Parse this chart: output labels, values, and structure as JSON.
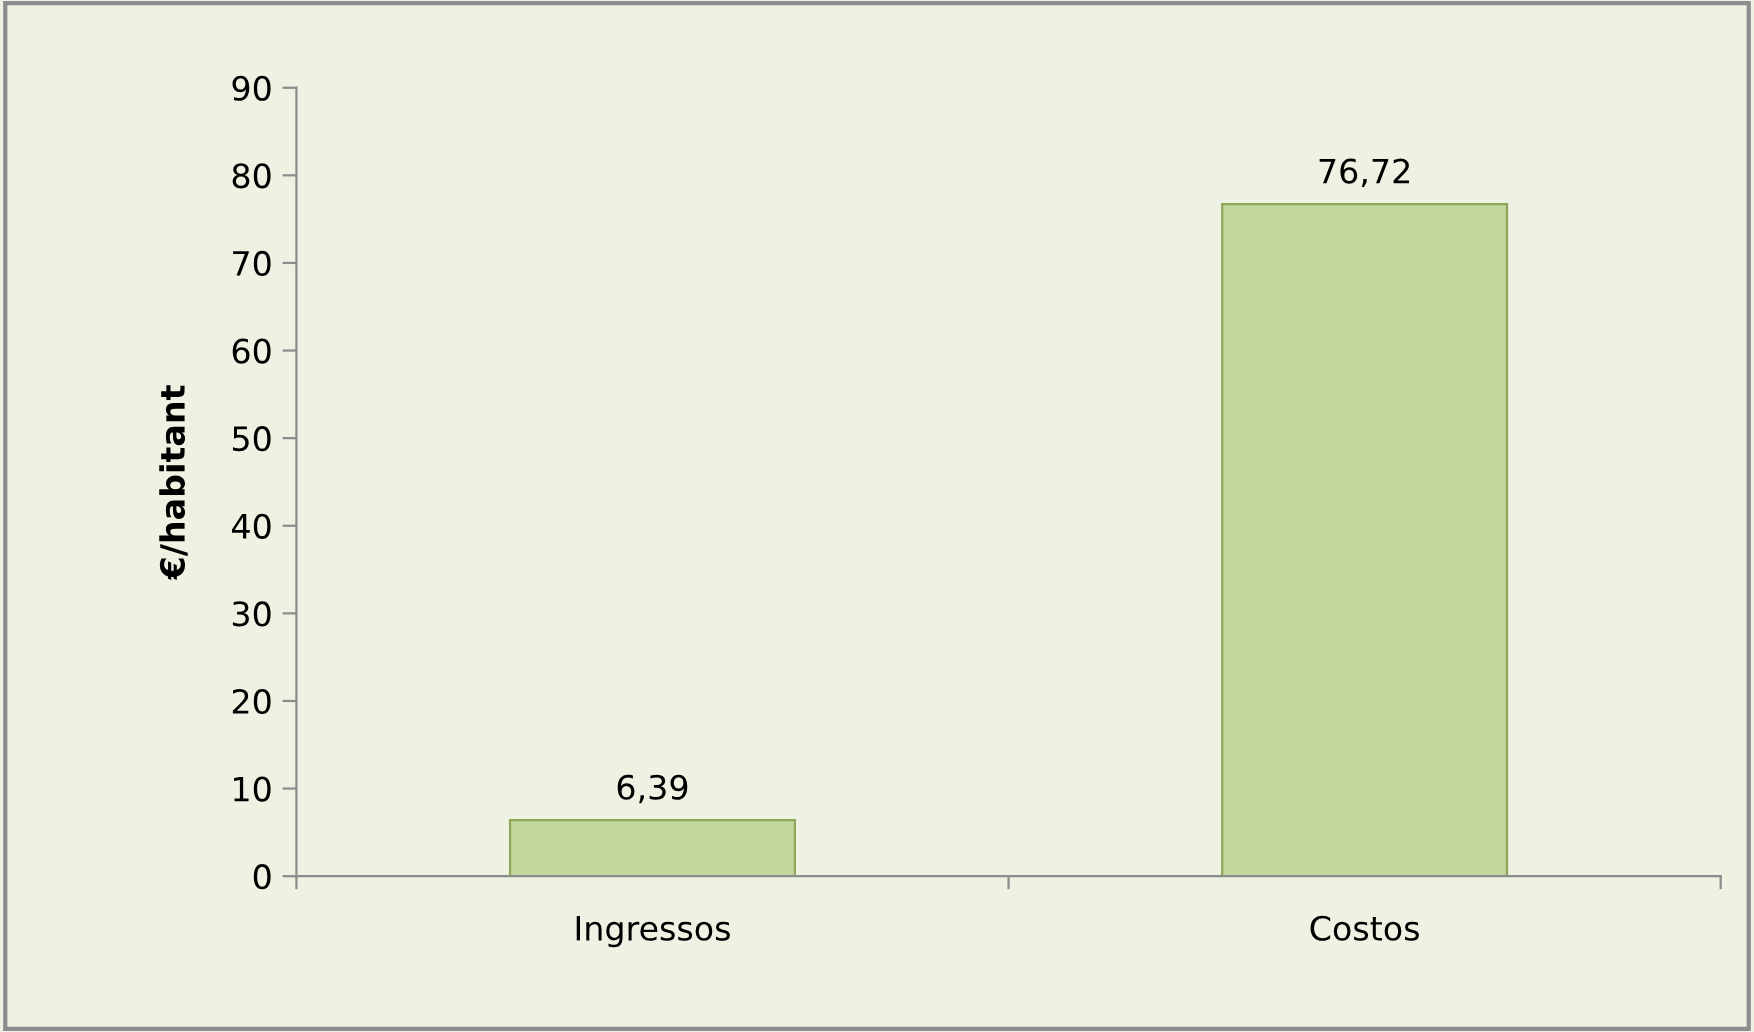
{
  "chart_data": {
    "type": "bar",
    "ylabel": "€/habitant",
    "categories": [
      "Ingressos",
      "Costos"
    ],
    "values": [
      6.39,
      76.72
    ],
    "value_labels": [
      "6,39",
      "76,72"
    ],
    "color": "#c3d69b",
    "ylim": [
      0,
      90
    ],
    "yticks": [
      0,
      10,
      20,
      30,
      40,
      50,
      60,
      70,
      80,
      90
    ],
    "grid": false,
    "legend": false
  }
}
